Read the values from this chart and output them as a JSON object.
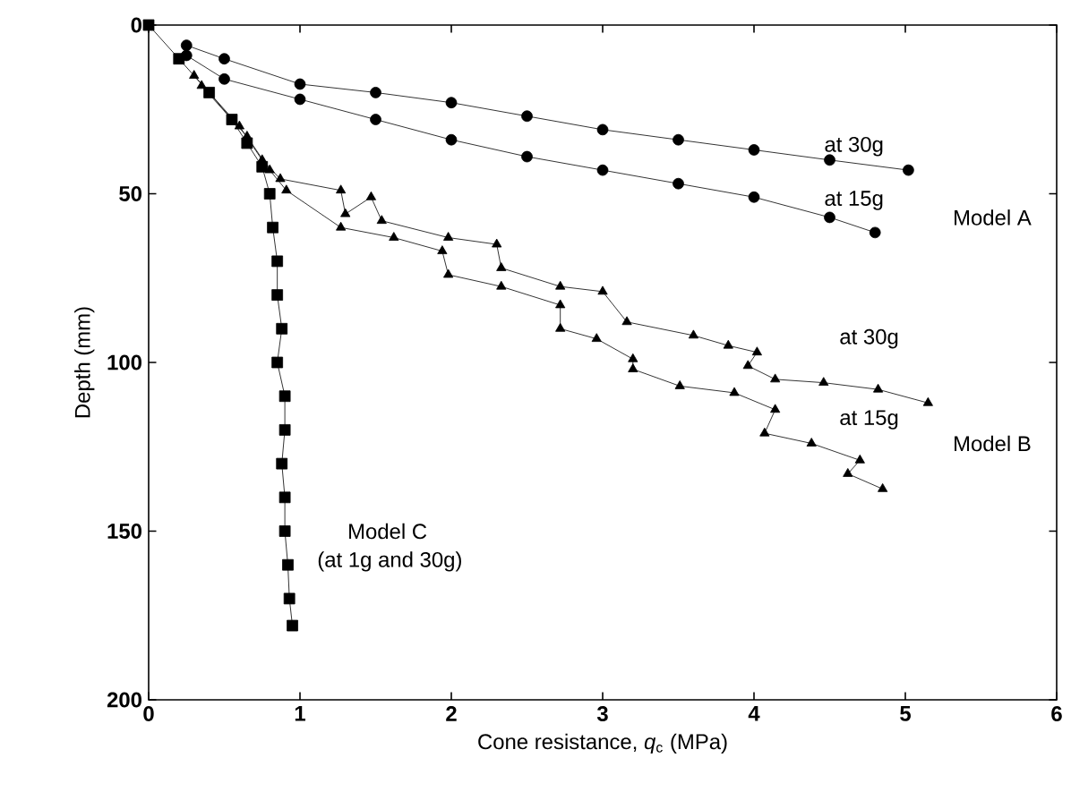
{
  "chart_data": {
    "type": "line",
    "xlabel": "Cone resistance, *q*$_{c}$ (MPa)",
    "ylabel": "Depth (mm)",
    "xlim": [
      0,
      6
    ],
    "ylim": [
      200,
      0
    ],
    "xticks": [
      0,
      1,
      2,
      3,
      4,
      5,
      6
    ],
    "yticks": [
      0,
      50,
      100,
      150,
      200
    ],
    "grid": false,
    "line_style": "solid",
    "series": [
      {
        "color": "#000000",
        "marker": "circle",
        "x": [
          0.25,
          0.5,
          1,
          1.5,
          2,
          2.5,
          3,
          3.5,
          4,
          4.5,
          5.02
        ],
        "values": [
          6,
          10,
          17.5,
          20,
          23,
          27,
          31,
          34,
          37,
          40,
          43
        ]
      },
      {
        "color": "#000000",
        "marker": "circle",
        "x": [
          0.25,
          0.5,
          1,
          1.5,
          2,
          2.5,
          3,
          3.5,
          4,
          4.5,
          4.8
        ],
        "values": [
          9,
          16,
          22,
          28,
          34,
          39,
          43,
          47,
          51,
          57,
          61.5
        ]
      },
      {
        "color": "#000000",
        "marker": "triangle",
        "x": [
          0.3,
          0.6,
          0.75,
          0.87,
          1.27,
          1.3,
          1.47,
          1.54,
          1.98,
          2.3,
          2.33,
          2.72,
          3.0,
          3.16,
          3.6,
          3.83,
          4.02,
          3.96,
          4.14,
          4.46,
          4.82,
          5.15
        ],
        "values": [
          15,
          30,
          40,
          45.6,
          49,
          56,
          51,
          58,
          63,
          65,
          72,
          77.5,
          79,
          88,
          92,
          95,
          97,
          101,
          105,
          106,
          108,
          112
        ]
      },
      {
        "color": "#000000",
        "marker": "triangle",
        "x": [
          0.35,
          0.65,
          0.8,
          0.91,
          1.27,
          1.62,
          1.94,
          1.98,
          2.33,
          2.72,
          2.72,
          2.96,
          3.2,
          3.2,
          3.51,
          3.87,
          4.14,
          4.07,
          4.38,
          4.7,
          4.62,
          4.85
        ],
        "values": [
          18,
          33,
          43,
          49,
          60,
          63,
          67,
          74,
          77.5,
          83,
          90,
          93,
          99,
          102,
          107,
          109,
          114,
          121,
          124,
          129,
          133,
          137.5
        ]
      },
      {
        "color": "#000000",
        "marker": "square",
        "x": [
          0,
          0.2,
          0.4,
          0.55,
          0.65,
          0.75,
          0.8,
          0.82,
          0.85,
          0.85,
          0.88,
          0.85,
          0.9,
          0.9,
          0.88,
          0.9,
          0.9,
          0.92,
          0.93,
          0.95
        ],
        "values": [
          0,
          10,
          20,
          28,
          35,
          42,
          50,
          60,
          70,
          80,
          90,
          100,
          110,
          120,
          130,
          140,
          150,
          160,
          170,
          178
        ]
      }
    ],
    "annotations": [
      "at 30g",
      "at 15g",
      "Model A",
      "at 30g",
      "at 15g",
      "Model B",
      "Model C",
      "(at 1g and 30g)"
    ]
  }
}
